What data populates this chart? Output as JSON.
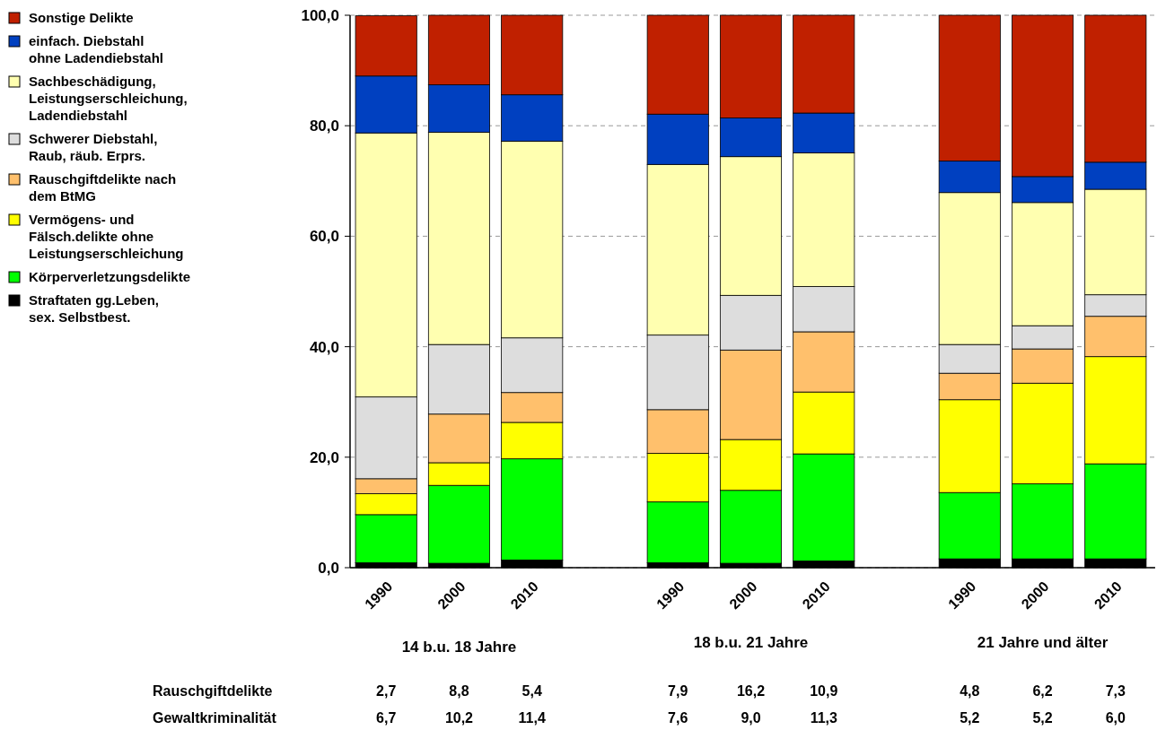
{
  "chart_data": {
    "type": "bar",
    "stacked": true,
    "categories": [
      "1990",
      "2000",
      "2010",
      null,
      "1990",
      "2000",
      "2010",
      null,
      "1990",
      "2000",
      "2010"
    ],
    "series": [
      {
        "name": "Straftaten gg.Leben,\nsex. Selbstbest.",
        "color": "#000000",
        "values": [
          0.9,
          0.8,
          1.4,
          null,
          0.9,
          0.8,
          1.2,
          null,
          1.6,
          1.6,
          1.6
        ]
      },
      {
        "name": "Körperverletzungsdelikte",
        "color": "#00ff00",
        "values": [
          8.7,
          14.1,
          18.3,
          null,
          11.0,
          13.2,
          19.4,
          null,
          12.0,
          13.6,
          17.2
        ]
      },
      {
        "name": "Vermögens- und\nFälsch.delikte ohne\nLeistungserschleichung",
        "color": "#ffff00",
        "values": [
          3.8,
          4.1,
          6.6,
          null,
          8.8,
          9.2,
          11.2,
          null,
          16.8,
          18.2,
          19.4
        ]
      },
      {
        "name": "Rauschgiftdelikte nach\ndem BtMG",
        "color": "#ffc06c",
        "values": [
          2.7,
          8.8,
          5.4,
          null,
          7.9,
          16.2,
          10.9,
          null,
          4.8,
          6.2,
          7.3
        ]
      },
      {
        "name": "Schwerer Diebstahl,\nRaub, räub. Erprs.",
        "color": "#dddddd",
        "values": [
          14.8,
          12.6,
          9.9,
          null,
          13.5,
          9.9,
          8.2,
          null,
          5.2,
          4.2,
          3.9
        ]
      },
      {
        "name": "Sachbeschädigung,\nLeistungserschleichung,\nLadendiebstahl",
        "color": "#ffffb0",
        "values": [
          47.8,
          38.4,
          35.6,
          null,
          30.9,
          25.1,
          24.2,
          null,
          27.5,
          22.3,
          19.1
        ]
      },
      {
        "name": "einfach. Diebstahl\nohne Ladendiebstahl",
        "color": "#0040c0",
        "values": [
          10.3,
          8.6,
          8.4,
          null,
          9.1,
          7.0,
          7.2,
          null,
          5.7,
          4.7,
          4.9
        ]
      },
      {
        "name": "Sonstige Delikte",
        "color": "#c02000",
        "values": [
          10.9,
          12.6,
          14.4,
          null,
          17.9,
          18.6,
          17.7,
          null,
          26.4,
          29.2,
          26.6
        ]
      }
    ],
    "ylim": [
      0,
      100
    ],
    "yticks": [
      {
        "value": 0,
        "label": "0,0"
      },
      {
        "value": 20,
        "label": "20,0"
      },
      {
        "value": 40,
        "label": "40,0"
      },
      {
        "value": 60,
        "label": "60,0"
      },
      {
        "value": 80,
        "label": "80,0"
      },
      {
        "value": 100,
        "label": "100,0"
      }
    ],
    "grid": "y",
    "legend": "left",
    "annotations": [
      "14 b.u. 18 Jahre",
      "18 b.u. 21 Jahre",
      "21 Jahre und älter",
      "Rauschgiftdelikte 2,7 8,8 5,4 7,9 16,2 10,9 4,8 6,2 7,3",
      "Gewaltkriminalität 6,7 10,2 11,4 7,6 9,0 11,3 5,2 5,2 6,0"
    ]
  }
}
